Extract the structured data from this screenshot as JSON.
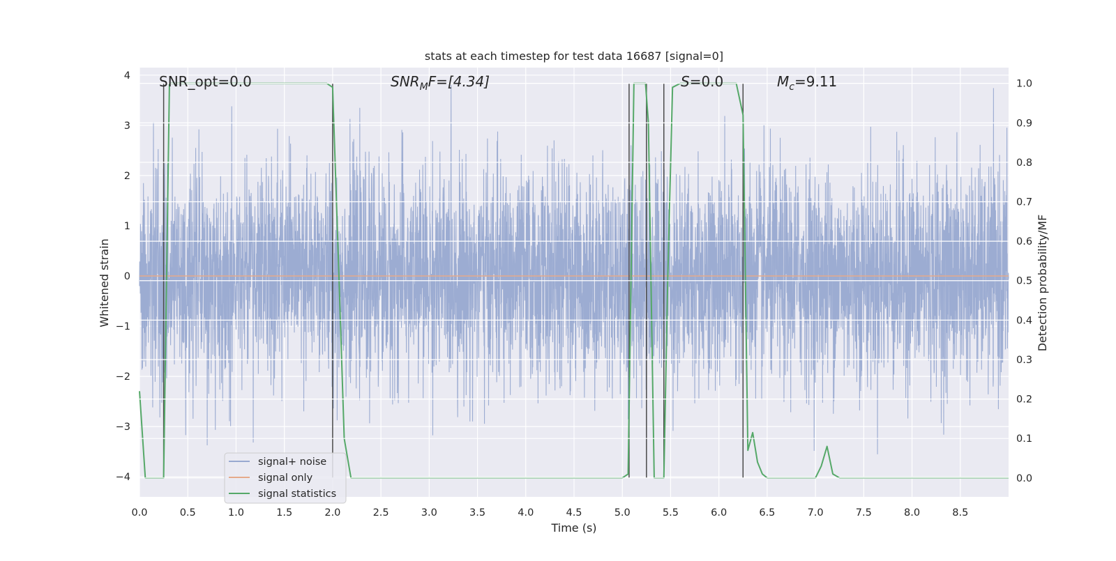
{
  "chart_data": {
    "type": "line",
    "title": "stats at each timestep for test data 16687 [signal=0]",
    "xlabel": "Time (s)",
    "ylabel_left": "Whitened strain",
    "ylabel_right": "Detection probability/MF",
    "xlim": [
      0.0,
      9.0
    ],
    "ylim_left": [
      -4.4,
      4.15
    ],
    "ylim_right": [
      -0.048,
      1.04
    ],
    "x_ticks": [
      "0.0",
      "0.5",
      "1.0",
      "1.5",
      "2.0",
      "2.5",
      "3.0",
      "3.5",
      "4.0",
      "4.5",
      "5.0",
      "5.5",
      "6.0",
      "6.5",
      "7.0",
      "7.5",
      "8.0",
      "8.5"
    ],
    "y_left_ticks": [
      "4",
      "3",
      "2",
      "1",
      "0",
      "−1",
      "−2",
      "−3",
      "−4"
    ],
    "y_right_ticks": [
      "1.0",
      "0.9",
      "0.8",
      "0.7",
      "0.6",
      "0.5",
      "0.4",
      "0.3",
      "0.2",
      "0.1",
      "0.0"
    ],
    "grid": true,
    "series": [
      {
        "name": "signal+ noise",
        "color": "#98a9d0",
        "axis": "left",
        "description": "whitened strain noise, approx. Gaussian, range about -3.6 to 3.8",
        "sample_rate": 512,
        "envelope_max": 3.8,
        "envelope_min": -3.7
      },
      {
        "name": "signal only",
        "color": "#e5aa8a",
        "axis": "left",
        "x": [
          0.0,
          9.0
        ],
        "y": [
          0.0,
          0.0
        ]
      },
      {
        "name": "signal statistics",
        "color": "#55a868",
        "axis": "right",
        "x": [
          0.0,
          0.06,
          0.12,
          0.18,
          0.25,
          0.28,
          0.31,
          0.4,
          1.0,
          1.5,
          1.94,
          2.0,
          2.06,
          2.12,
          2.19,
          2.25,
          3.0,
          4.0,
          5.0,
          5.06,
          5.12,
          5.24,
          5.27,
          5.33,
          5.43,
          5.47,
          5.52,
          5.6,
          6.0,
          6.18,
          6.25,
          6.3,
          6.35,
          6.4,
          6.45,
          6.5,
          6.6,
          7.0,
          7.06,
          7.12,
          7.18,
          7.25,
          7.5,
          8.0,
          9.0
        ],
        "y": [
          0.22,
          0.0,
          0.0,
          0.0,
          0.0,
          0.5,
          1.0,
          1.0,
          1.0,
          1.0,
          1.0,
          0.99,
          0.55,
          0.1,
          0.0,
          0.0,
          0.0,
          0.0,
          0.0,
          0.01,
          1.0,
          1.0,
          0.9,
          0.0,
          0.0,
          0.5,
          0.99,
          1.0,
          1.0,
          1.0,
          0.92,
          0.07,
          0.115,
          0.04,
          0.01,
          0.0,
          0.0,
          0.0,
          0.03,
          0.08,
          0.01,
          0.0,
          0.0,
          0.0,
          0.0
        ]
      }
    ],
    "vertical_markers": [
      {
        "x": 0.25,
        "y_from": 0.0,
        "y_to": 1.0
      },
      {
        "x": 2.0,
        "y_from": 0.0,
        "y_to": 1.0
      },
      {
        "x": 5.07,
        "y_from": 0.0,
        "y_to": 1.0
      },
      {
        "x": 5.25,
        "y_from": 0.0,
        "y_to": 1.0
      },
      {
        "x": 5.43,
        "y_from": 0.0,
        "y_to": 1.0
      },
      {
        "x": 6.25,
        "y_from": 0.0,
        "y_to": 1.0
      }
    ],
    "annotations": [
      {
        "id": "snr_opt",
        "text": "SNR_opt=0.0",
        "x": 0.19
      },
      {
        "id": "snr_mf",
        "text_prefix": "SNR",
        "text_sub": "M",
        "text_suffix": "F=[4.34]",
        "x": 2.6
      },
      {
        "id": "s",
        "text_prefix": "S",
        "text_suffix": "=0.0",
        "x": 5.6
      },
      {
        "id": "mc",
        "text_prefix": "M",
        "text_sub": "c",
        "text_suffix": "=9.11",
        "x": 6.6
      }
    ],
    "legend": {
      "placement": "lower-left",
      "entries": [
        {
          "label": "signal+ noise",
          "color": "#98a9d0"
        },
        {
          "label": "signal only",
          "color": "#e5aa8a"
        },
        {
          "label": "signal statistics",
          "color": "#55a868"
        }
      ]
    }
  }
}
